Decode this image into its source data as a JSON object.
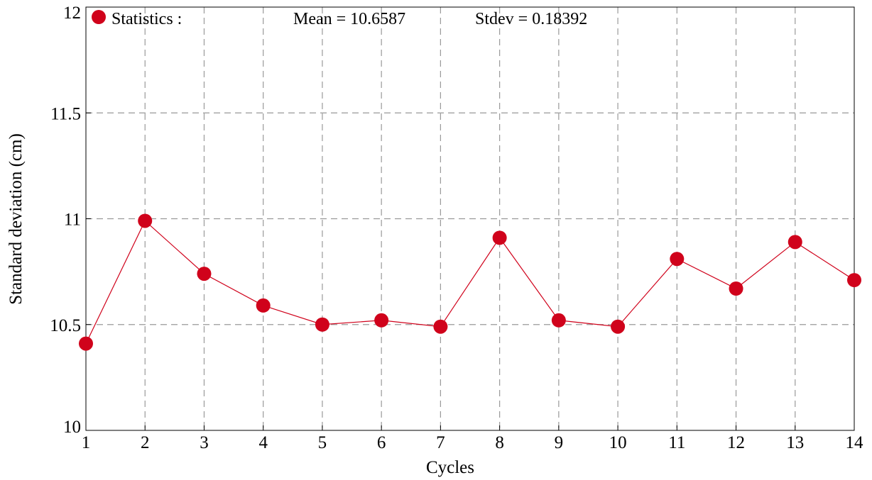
{
  "chart_data": {
    "type": "line",
    "xlabel": "Cycles",
    "ylabel": "Standard deviation (cm)",
    "xlim": [
      1,
      14
    ],
    "ylim": [
      10,
      12
    ],
    "xticks": [
      "1",
      "2",
      "3",
      "4",
      "5",
      "6",
      "7",
      "8",
      "9",
      "10",
      "11",
      "12",
      "13",
      "14"
    ],
    "yticks": [
      "10",
      "10.5",
      "11",
      "11.5",
      "12"
    ],
    "grid": true,
    "series": [
      {
        "color": "#d0021b",
        "x": [
          1,
          2,
          3,
          4,
          5,
          6,
          7,
          8,
          9,
          10,
          11,
          12,
          13,
          14
        ],
        "y": [
          10.41,
          10.99,
          10.74,
          10.59,
          10.5,
          10.52,
          10.49,
          10.91,
          10.52,
          10.49,
          10.81,
          10.67,
          10.89,
          10.71
        ]
      }
    ],
    "legend": {
      "position": "top-left",
      "label": "Statistics :",
      "mean_text": "Mean = 10.6587",
      "stdev_text": "Stdev = 0.18392"
    }
  }
}
